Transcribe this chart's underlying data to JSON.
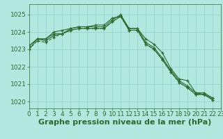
{
  "title": "Graphe pression niveau de la mer (hPa)",
  "background_color": "#b3e8e0",
  "grid_color": "#8ecfc9",
  "line_color": "#2d6a2d",
  "xlim": [
    0,
    23
  ],
  "ylim": [
    1019.6,
    1025.6
  ],
  "yticks": [
    1020,
    1021,
    1022,
    1023,
    1024,
    1025
  ],
  "xticks": [
    0,
    1,
    2,
    3,
    4,
    5,
    6,
    7,
    8,
    9,
    10,
    11,
    12,
    13,
    14,
    15,
    16,
    17,
    18,
    19,
    20,
    21,
    22,
    23
  ],
  "series": [
    {
      "x": [
        0,
        1,
        2,
        3,
        4,
        5,
        6,
        7,
        8,
        9,
        10,
        11,
        12,
        13,
        14,
        15,
        16,
        17,
        18,
        19,
        20,
        21,
        22
      ],
      "y": [
        1023.2,
        1023.6,
        1023.6,
        1023.9,
        1023.9,
        1024.2,
        1024.3,
        1024.3,
        1024.3,
        1024.3,
        1024.7,
        1025.0,
        1024.2,
        1024.2,
        1023.6,
        1023.3,
        1022.8,
        1021.9,
        1021.3,
        1021.2,
        1020.5,
        1020.5,
        1020.2
      ],
      "linestyle": "-",
      "marker": "+"
    },
    {
      "x": [
        0,
        1,
        2,
        3,
        4,
        5,
        6,
        7,
        8,
        9,
        10,
        11,
        12,
        13,
        14,
        15,
        16,
        17,
        18,
        19,
        20,
        21,
        22
      ],
      "y": [
        1023.0,
        1023.6,
        1023.5,
        1023.8,
        1023.9,
        1024.1,
        1024.2,
        1024.2,
        1024.2,
        1024.2,
        1024.6,
        1024.9,
        1024.1,
        1024.1,
        1023.3,
        1023.0,
        1022.4,
        1021.7,
        1021.1,
        1020.8,
        1020.4,
        1020.4,
        1020.1
      ],
      "linestyle": "-",
      "marker": "+"
    },
    {
      "x": [
        0,
        1,
        2,
        3,
        4,
        5,
        6,
        7,
        8,
        9,
        10,
        11,
        12,
        13,
        14,
        15,
        16,
        17,
        18,
        19,
        20,
        21,
        22
      ],
      "y": [
        1023.2,
        1023.6,
        1023.6,
        1024.0,
        1024.1,
        1024.2,
        1024.3,
        1024.3,
        1024.4,
        1024.4,
        1024.8,
        1024.9,
        1024.2,
        1024.2,
        1023.4,
        1023.1,
        1022.5,
        1021.8,
        1021.2,
        1020.9,
        1020.5,
        1020.4,
        1020.2
      ],
      "linestyle": "-",
      "marker": "+"
    },
    {
      "x": [
        0,
        1,
        2,
        3,
        4,
        5,
        6,
        7,
        8,
        9,
        10,
        11,
        12,
        13,
        14,
        15,
        16,
        17,
        18,
        19,
        20,
        21,
        22
      ],
      "y": [
        1023.0,
        1023.5,
        1023.4,
        1023.7,
        1023.9,
        1024.1,
        1024.2,
        1024.2,
        1024.2,
        1024.2,
        1024.6,
        1024.9,
        1024.1,
        1024.1,
        1023.3,
        1023.0,
        1022.4,
        1021.7,
        1021.1,
        1020.8,
        1020.4,
        1020.4,
        1020.1
      ],
      "linestyle": "--",
      "marker": "+"
    }
  ],
  "title_fontsize": 8,
  "tick_fontsize": 6.5
}
